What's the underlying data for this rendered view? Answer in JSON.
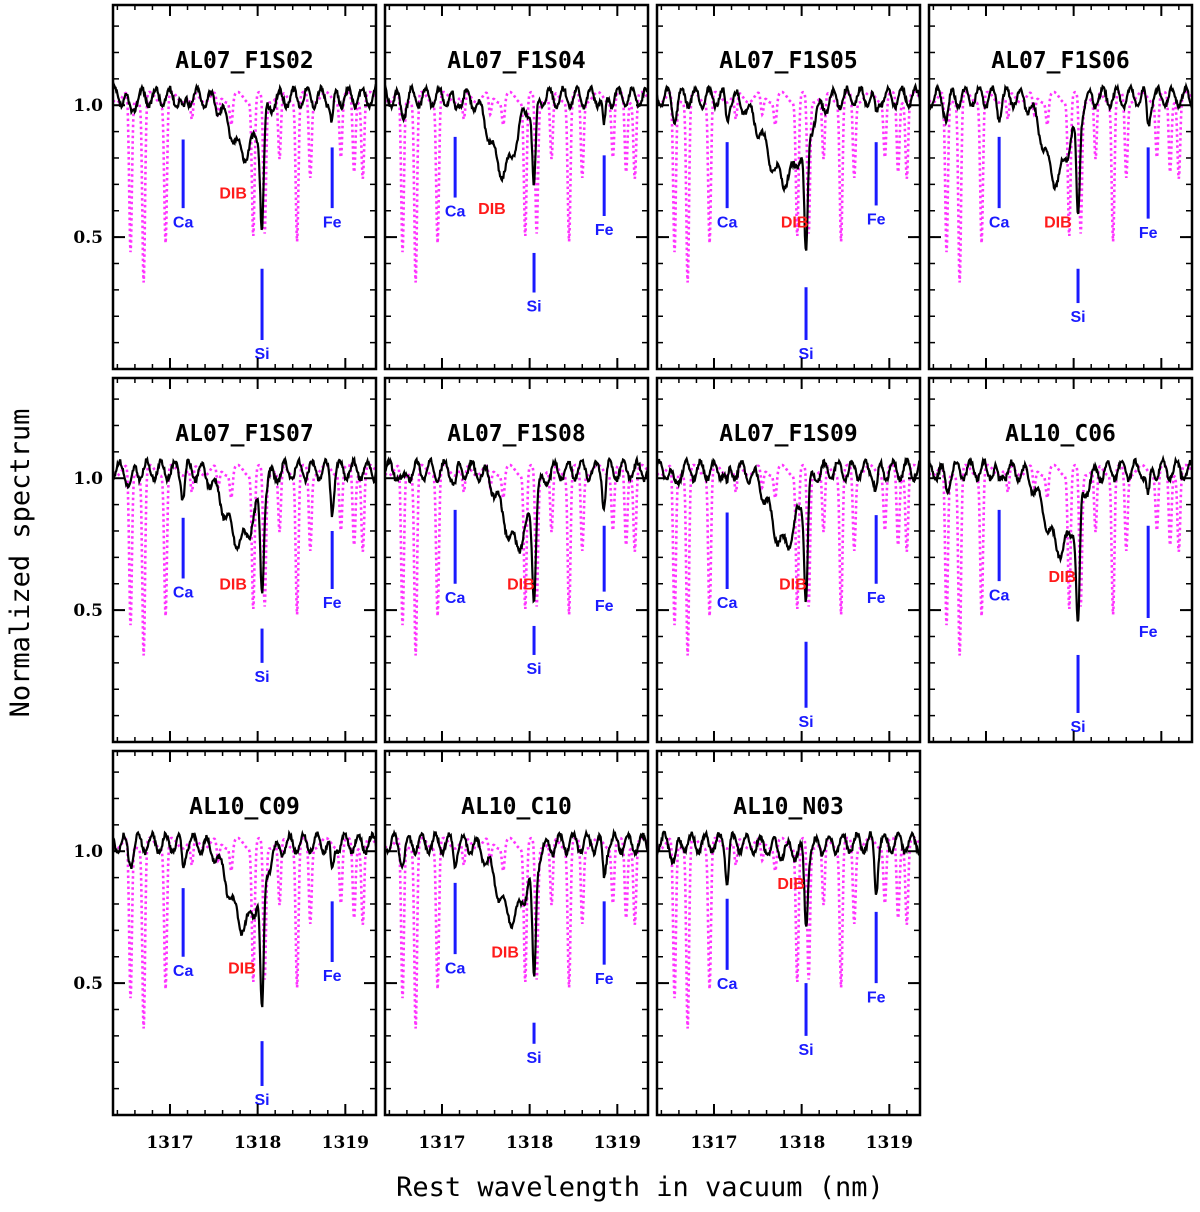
{
  "figure": {
    "xlabel": "Rest wavelength in vacuum (nm)",
    "ylabel": "Normalized spectrum"
  },
  "colors": {
    "spectrum": "#000000",
    "telluric": "#ff33ff",
    "atomic_markers": "#1a1aff",
    "dib": "#ff1a1a"
  },
  "chart_data": {
    "type": "line",
    "xlim": [
      1316.35,
      1319.35
    ],
    "ylim": [
      0.0,
      1.38
    ],
    "xticks": [
      1317,
      1318,
      1319
    ],
    "yticks": [
      0.5,
      1.0
    ],
    "ytick_labels": [
      "0.5",
      "1.0"
    ],
    "grid": false,
    "line_styles": {
      "spectrum": "solid",
      "telluric": "dotted"
    },
    "telluric_lines": [
      {
        "x": 1316.55,
        "y": 0.4
      },
      {
        "x": 1316.7,
        "y": 0.3
      },
      {
        "x": 1316.95,
        "y": 0.45
      },
      {
        "x": 1317.25,
        "y": 0.9
      },
      {
        "x": 1317.55,
        "y": 0.92
      },
      {
        "x": 1317.7,
        "y": 0.9
      },
      {
        "x": 1317.95,
        "y": 0.48
      },
      {
        "x": 1318.08,
        "y": 0.48
      },
      {
        "x": 1318.25,
        "y": 0.75
      },
      {
        "x": 1318.45,
        "y": 0.46
      },
      {
        "x": 1318.6,
        "y": 0.7
      },
      {
        "x": 1318.95,
        "y": 0.78
      },
      {
        "x": 1319.1,
        "y": 0.72
      },
      {
        "x": 1319.2,
        "y": 0.7
      }
    ],
    "panels": [
      {
        "title": "AL07_F1S02",
        "sigma": 0.22,
        "dib_depth": 0.21,
        "dib_center": 1317.85,
        "si_depth": 0.4,
        "ca_depth": 0.07,
        "fe_depth": 0.1,
        "dib_label_x": 1317.72,
        "dib_label_y": 0.67,
        "ca_label_y": 0.56,
        "fe_label_y": 0.56,
        "si_label_y": 0.06
      },
      {
        "title": "AL07_F1S04",
        "sigma": 0.2,
        "dib_depth": 0.28,
        "dib_center": 1317.7,
        "si_depth": 0.34,
        "ca_depth": 0.06,
        "fe_depth": 0.13,
        "dib_label_x": 1317.57,
        "dib_label_y": 0.61,
        "ca_label_y": 0.6,
        "fe_label_y": 0.53,
        "si_label_y": 0.24
      },
      {
        "title": "AL07_F1S05",
        "sigma": 0.3,
        "dib_depth": 0.31,
        "dib_center": 1317.8,
        "si_depth": 0.47,
        "ca_depth": 0.08,
        "fe_depth": 0.08,
        "dib_label_x": 1317.92,
        "dib_label_y": 0.56,
        "ca_label_y": 0.56,
        "fe_label_y": 0.57,
        "si_label_y": 0.06
      },
      {
        "title": "AL07_F1S06",
        "sigma": 0.2,
        "dib_depth": 0.31,
        "dib_center": 1317.8,
        "si_depth": 0.4,
        "ca_depth": 0.06,
        "fe_depth": 0.1,
        "dib_label_x": 1317.82,
        "dib_label_y": 0.56,
        "ca_label_y": 0.56,
        "fe_label_y": 0.52,
        "si_label_y": 0.2
      },
      {
        "title": "AL07_F1S07",
        "sigma": 0.24,
        "dib_depth": 0.27,
        "dib_center": 1317.8,
        "si_depth": 0.35,
        "ca_depth": 0.09,
        "fe_depth": 0.14,
        "dib_label_x": 1317.72,
        "dib_label_y": 0.6,
        "ca_label_y": 0.57,
        "fe_label_y": 0.53,
        "si_label_y": 0.25
      },
      {
        "title": "AL07_F1S08",
        "sigma": 0.22,
        "dib_depth": 0.28,
        "dib_center": 1317.85,
        "si_depth": 0.34,
        "ca_depth": 0.06,
        "fe_depth": 0.12,
        "dib_label_x": 1317.9,
        "dib_label_y": 0.6,
        "ca_label_y": 0.55,
        "fe_label_y": 0.52,
        "si_label_y": 0.28
      },
      {
        "title": "AL07_F1S09",
        "sigma": 0.22,
        "dib_depth": 0.28,
        "dib_center": 1317.8,
        "si_depth": 0.4,
        "ca_depth": 0.07,
        "fe_depth": 0.08,
        "dib_label_x": 1317.9,
        "dib_label_y": 0.6,
        "ca_label_y": 0.53,
        "fe_label_y": 0.55,
        "si_label_y": 0.08
      },
      {
        "title": "AL10_C06",
        "sigma": 0.24,
        "dib_depth": 0.3,
        "dib_center": 1317.85,
        "si_depth": 0.45,
        "ca_depth": 0.06,
        "fe_depth": 0.12,
        "dib_label_x": 1317.87,
        "dib_label_y": 0.63,
        "ca_label_y": 0.56,
        "fe_label_y": 0.42,
        "si_label_y": 0.06
      },
      {
        "title": "AL10_C09",
        "sigma": 0.24,
        "dib_depth": 0.31,
        "dib_center": 1317.85,
        "si_depth": 0.5,
        "ca_depth": 0.08,
        "fe_depth": 0.13,
        "dib_label_x": 1317.82,
        "dib_label_y": 0.56,
        "ca_label_y": 0.55,
        "fe_label_y": 0.53,
        "si_label_y": 0.06
      },
      {
        "title": "AL10_C10",
        "sigma": 0.24,
        "dib_depth": 0.28,
        "dib_center": 1317.8,
        "si_depth": 0.43,
        "ca_depth": 0.06,
        "fe_depth": 0.13,
        "dib_label_x": 1317.72,
        "dib_label_y": 0.62,
        "ca_label_y": 0.56,
        "fe_label_y": 0.52,
        "si_label_y": 0.22
      },
      {
        "title": "AL10_N03",
        "sigma": 0.3,
        "dib_depth": 0.03,
        "dib_center": 1317.9,
        "si_depth": 0.28,
        "ca_depth": 0.12,
        "fe_depth": 0.17,
        "dib_label_x": 1317.88,
        "dib_label_y": 0.88,
        "ca_label_y": 0.5,
        "fe_label_y": 0.45,
        "si_label_y": 0.25
      }
    ]
  },
  "markers": {
    "ca": {
      "label": "Ca",
      "x": 1317.15
    },
    "si": {
      "label": "Si",
      "x": 1318.05
    },
    "fe": {
      "label": "Fe",
      "x": 1318.85
    },
    "dib": {
      "label": "DIB"
    }
  }
}
